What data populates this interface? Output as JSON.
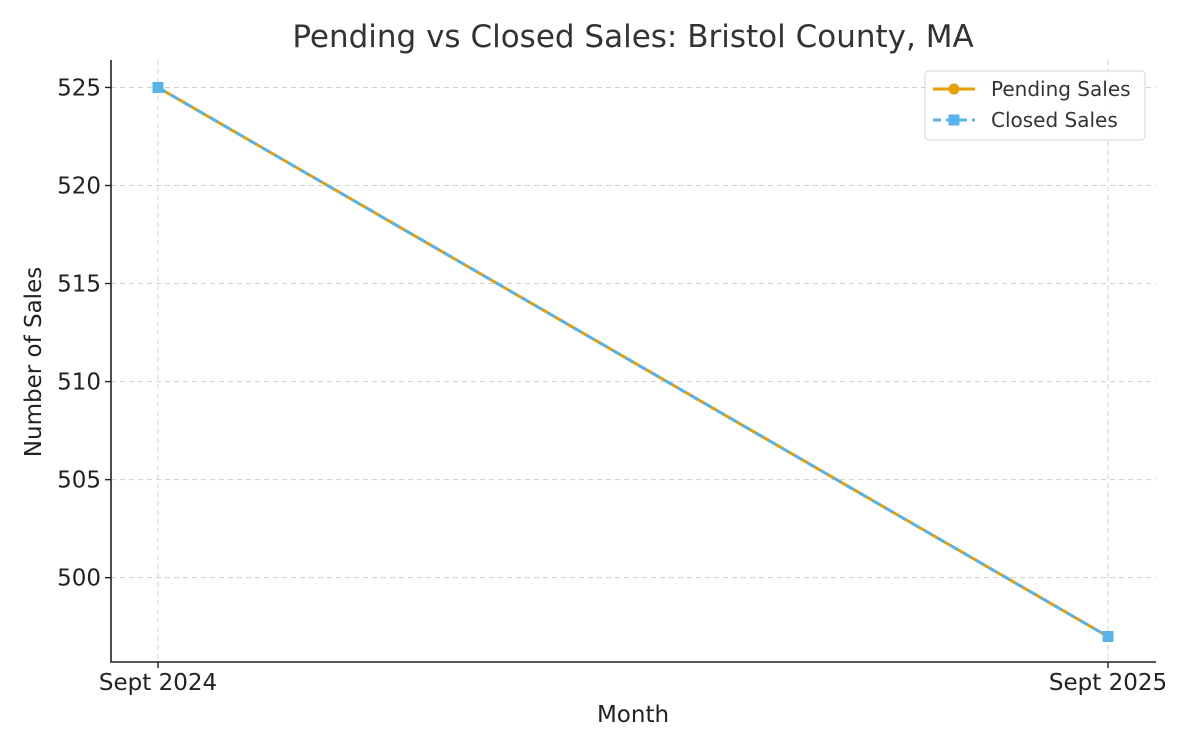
{
  "chart_data": {
    "type": "line",
    "title": "Pending vs Closed Sales: Bristol County, MA",
    "xlabel": "Month",
    "ylabel": "Number of Sales",
    "categories": [
      "Sept 2024",
      "Sept 2025"
    ],
    "yticks": [
      500,
      505,
      510,
      515,
      520,
      525
    ],
    "ylim": [
      495.7,
      526.4
    ],
    "grid": true,
    "legend_position": "top-right",
    "series": [
      {
        "name": "Pending Sales",
        "values": [
          525,
          497
        ],
        "color": "#E69F00",
        "marker": "circle",
        "linestyle": "solid"
      },
      {
        "name": "Closed Sales",
        "values": [
          525,
          497
        ],
        "color": "#56B4E9",
        "marker": "square",
        "linestyle": "dashed"
      }
    ]
  }
}
